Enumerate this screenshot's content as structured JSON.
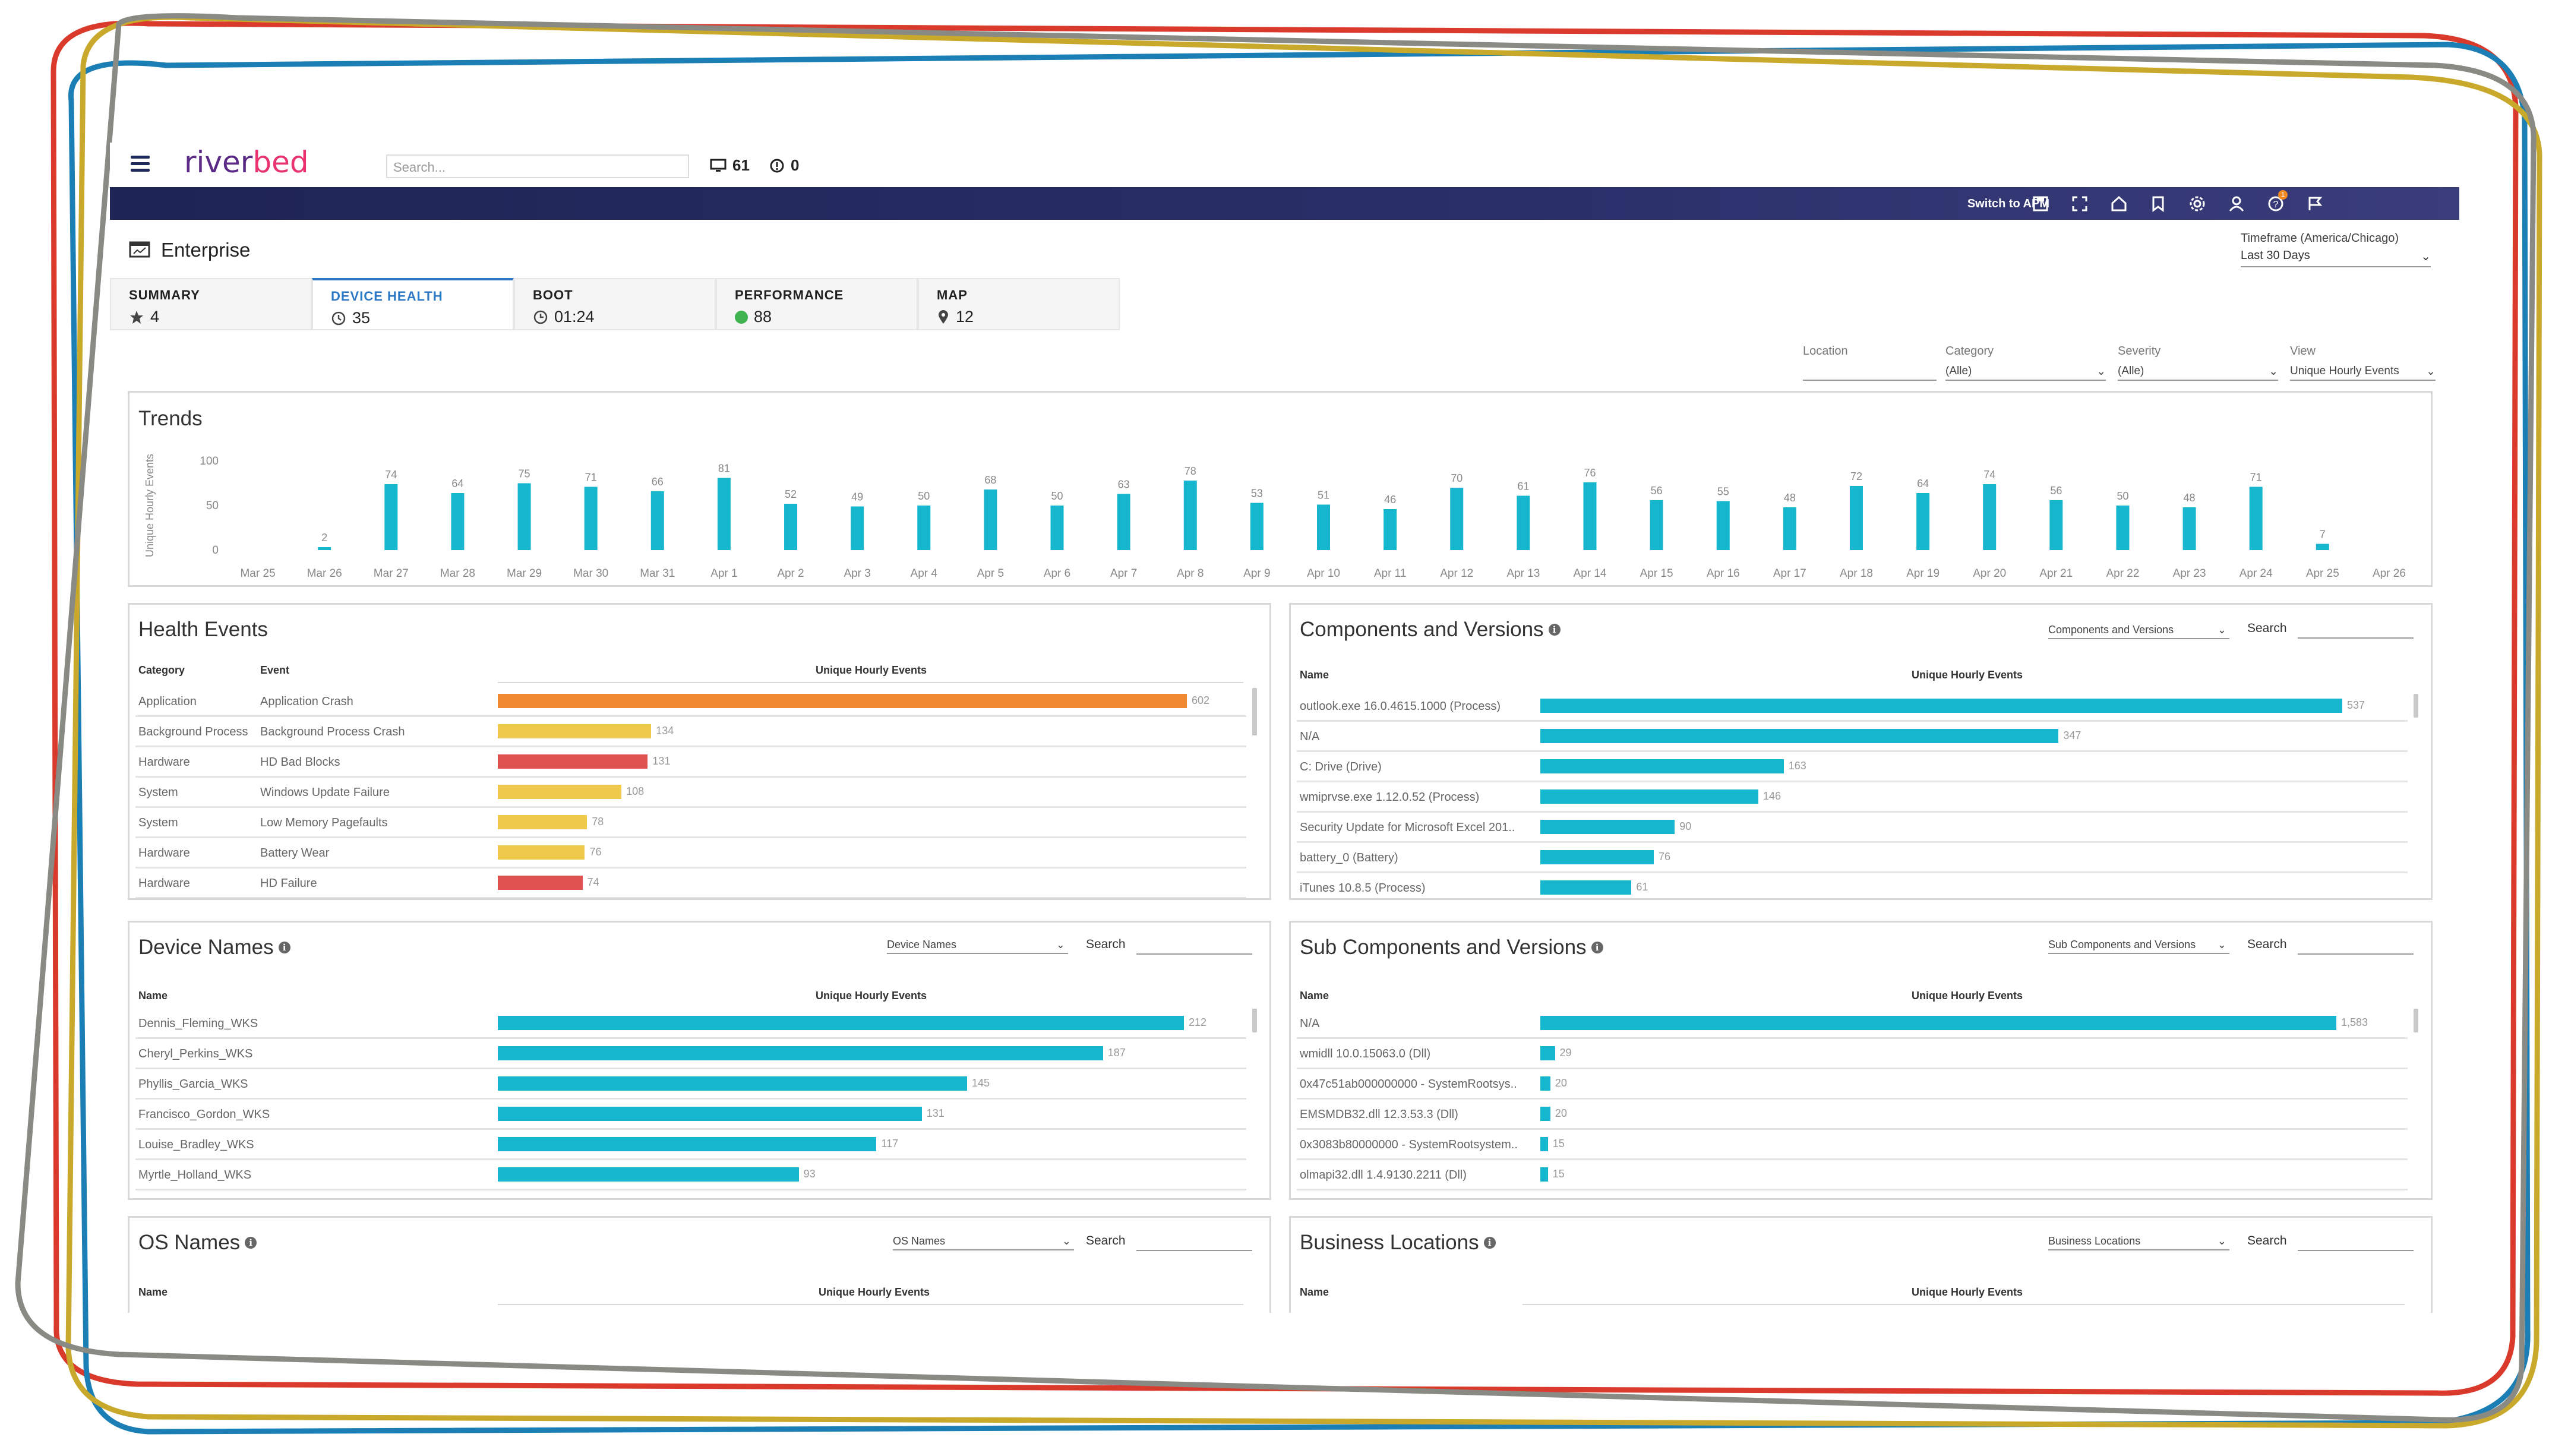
{
  "brand": {
    "logo": "riverbed",
    "accent": "#2b78c5",
    "nav_bg": "#1e2453",
    "bar_teal": "#17b6cf",
    "bar_orange": "#f08a30",
    "bar_yellow": "#efc94c",
    "bar_red": "#e05252"
  },
  "topbar": {
    "search_placeholder": "Search...",
    "devices_count": "61",
    "alerts_count": "0"
  },
  "navbar": {
    "switch_label": "Switch to APM",
    "icons": [
      "save-icon",
      "fullscreen-icon",
      "home-icon",
      "bookmark-icon",
      "gear-icon",
      "user-icon",
      "help-icon",
      "flag-icon"
    ],
    "help_badge": "1"
  },
  "page": {
    "title": "Enterprise",
    "timeframe_label": "Timeframe (America/Chicago)",
    "timeframe_value": "Last 30 Days"
  },
  "tabs": [
    {
      "label": "SUMMARY",
      "value": "4",
      "icon": "star-icon"
    },
    {
      "label": "DEVICE HEALTH",
      "value": "35",
      "icon": "clock-alert-icon"
    },
    {
      "label": "BOOT",
      "value": "01:24",
      "icon": "clock-icon"
    },
    {
      "label": "PERFORMANCE",
      "value": "88",
      "icon": "status-dot"
    },
    {
      "label": "MAP",
      "value": "12",
      "icon": "pin-icon"
    }
  ],
  "filters": {
    "location": {
      "label": "Location",
      "value": ""
    },
    "category": {
      "label": "Category",
      "value": "(Alle)"
    },
    "severity": {
      "label": "Severity",
      "value": "(Alle)"
    },
    "view": {
      "label": "View",
      "value": "Unique Hourly Events"
    }
  },
  "trends": {
    "title": "Trends",
    "chart_data": {
      "type": "bar",
      "ylabel": "Unique Hourly Events",
      "yticks": [
        100,
        50,
        0
      ],
      "ylim": [
        0,
        100
      ],
      "categories": [
        "Mar 25",
        "Mar 26",
        "Mar 27",
        "Mar 28",
        "Mar 29",
        "Mar 30",
        "Mar 31",
        "Apr 1",
        "Apr 2",
        "Apr 3",
        "Apr 4",
        "Apr 5",
        "Apr 6",
        "Apr 7",
        "Apr 8",
        "Apr 9",
        "Apr 10",
        "Apr 11",
        "Apr 12",
        "Apr 13",
        "Apr 14",
        "Apr 15",
        "Apr 16",
        "Apr 17",
        "Apr 18",
        "Apr 19",
        "Apr 20",
        "Apr 21",
        "Apr 22",
        "Apr 23",
        "Apr 24",
        "Apr 25",
        "Apr 26"
      ],
      "values": [
        null,
        2,
        74,
        64,
        75,
        71,
        66,
        81,
        52,
        49,
        50,
        68,
        50,
        63,
        78,
        53,
        51,
        46,
        70,
        61,
        76,
        56,
        55,
        48,
        72,
        64,
        74,
        56,
        50,
        48,
        71,
        7,
        null
      ],
      "labels": [
        "",
        "2",
        "74",
        "64",
        "75",
        "71",
        "66",
        "81",
        "52",
        "49",
        "50",
        "68",
        "50",
        "63",
        "78",
        "53",
        "51",
        "46",
        "70",
        "61",
        "76",
        "56",
        "55",
        "48",
        "72",
        "64",
        "74",
        "56",
        "50",
        "48",
        "71",
        "7",
        ""
      ]
    }
  },
  "health_events": {
    "title": "Health Events",
    "col_category": "Category",
    "col_event": "Event",
    "col_value": "Unique Hourly Events",
    "max": 602,
    "rows": [
      {
        "category": "Application",
        "event": "Application Crash",
        "value": 602,
        "label": "602",
        "color": "#f08a30"
      },
      {
        "category": "Background Process",
        "event": "Background Process Crash",
        "value": 134,
        "label": "134",
        "color": "#efc94c"
      },
      {
        "category": "Hardware",
        "event": "HD Bad Blocks",
        "value": 131,
        "label": "131",
        "color": "#e05252"
      },
      {
        "category": "System",
        "event": "Windows Update Failure",
        "value": 108,
        "label": "108",
        "color": "#efc94c"
      },
      {
        "category": "System",
        "event": "Low Memory Pagefaults",
        "value": 78,
        "label": "78",
        "color": "#efc94c"
      },
      {
        "category": "Hardware",
        "event": "Battery Wear",
        "value": 76,
        "label": "76",
        "color": "#efc94c"
      },
      {
        "category": "Hardware",
        "event": "HD Failure",
        "value": 74,
        "label": "74",
        "color": "#e05252"
      }
    ]
  },
  "components": {
    "title": "Components and Versions",
    "dropdown": "Components and Versions",
    "search_label": "Search",
    "col_name": "Name",
    "col_value": "Unique Hourly Events",
    "max": 537,
    "rows": [
      {
        "name": "outlook.exe 16.0.4615.1000 (Process)",
        "value": 537,
        "label": "537"
      },
      {
        "name": "N/A",
        "value": 347,
        "label": "347"
      },
      {
        "name": "C: Drive (Drive)",
        "value": 163,
        "label": "163"
      },
      {
        "name": "wmiprvse.exe 1.12.0.52 (Process)",
        "value": 146,
        "label": "146"
      },
      {
        "name": "Security Update for Microsoft Excel 201..",
        "value": 90,
        "label": "90"
      },
      {
        "name": "battery_0 (Battery)",
        "value": 76,
        "label": "76"
      },
      {
        "name": "iTunes 10.8.5 (Process)",
        "value": 61,
        "label": "61"
      }
    ]
  },
  "device_names": {
    "title": "Device Names",
    "dropdown": "Device Names",
    "search_label": "Search",
    "col_name": "Name",
    "col_value": "Unique Hourly Events",
    "max": 212,
    "rows": [
      {
        "name": "Dennis_Fleming_WKS",
        "value": 212,
        "label": "212"
      },
      {
        "name": "Cheryl_Perkins_WKS",
        "value": 187,
        "label": "187"
      },
      {
        "name": "Phyllis_Garcia_WKS",
        "value": 145,
        "label": "145"
      },
      {
        "name": "Francisco_Gordon_WKS",
        "value": 131,
        "label": "131"
      },
      {
        "name": "Louise_Bradley_WKS",
        "value": 117,
        "label": "117"
      },
      {
        "name": "Myrtle_Holland_WKS",
        "value": 93,
        "label": "93"
      }
    ]
  },
  "sub_components": {
    "title": "Sub Components and Versions",
    "dropdown": "Sub Components and Versions",
    "search_label": "Search",
    "col_name": "Name",
    "col_value": "Unique Hourly Events",
    "max": 1583,
    "rows": [
      {
        "name": "N/A",
        "value": 1583,
        "label": "1,583"
      },
      {
        "name": "wmidll 10.0.15063.0 (Dll)",
        "value": 29,
        "label": "29"
      },
      {
        "name": "0x47c51ab000000000 - SystemRootsys..",
        "value": 20,
        "label": "20"
      },
      {
        "name": "EMSMDB32.dll 12.3.53.3 (Dll)",
        "value": 20,
        "label": "20"
      },
      {
        "name": "0x3083b80000000 - SystemRootsystem..",
        "value": 15,
        "label": "15"
      },
      {
        "name": "olmapi32.dll 1.4.9130.2211 (Dll)",
        "value": 15,
        "label": "15"
      }
    ]
  },
  "os_names": {
    "title": "OS Names",
    "dropdown": "OS Names",
    "search_label": "Search",
    "col_name": "Name",
    "col_value": "Unique Hourly Events"
  },
  "business_locations": {
    "title": "Business Locations",
    "dropdown": "Business Locations",
    "search_label": "Search",
    "col_name": "Name",
    "col_value": "Unique Hourly Events"
  }
}
